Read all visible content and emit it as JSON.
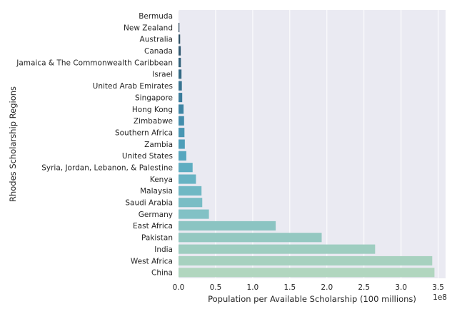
{
  "chart_data": {
    "type": "bar",
    "orientation": "horizontal",
    "xlabel": "Population per Available Scholarship (100 millions)",
    "ylabel": "Rhodes Scholarship Regions",
    "offset_label": "1e8",
    "xlim": [
      0,
      3.6
    ],
    "xticks": [
      "0.0",
      "0.5",
      "1.0",
      "1.5",
      "2.0",
      "2.5",
      "3.0",
      "3.5"
    ],
    "grid": true,
    "categories": [
      "Bermuda",
      "New Zealand",
      "Australia",
      "Canada",
      "Jamaica & The Commonwealth Caribbean",
      "Israel",
      "United Arab Emirates",
      "Singapore",
      "Hong Kong",
      "Zimbabwe",
      "Southern Africa",
      "Zambia",
      "United States",
      "Syria, Jordan, Lebanon, & Palestine",
      "Kenya",
      "Malaysia",
      "Saudi Arabia",
      "Germany",
      "East Africa",
      "Pakistan",
      "India",
      "West Africa",
      "China"
    ],
    "values": [
      0.0007,
      0.012,
      0.022,
      0.03,
      0.032,
      0.04,
      0.045,
      0.05,
      0.068,
      0.075,
      0.08,
      0.085,
      0.105,
      0.19,
      0.235,
      0.31,
      0.32,
      0.41,
      1.31,
      1.93,
      2.65,
      3.42,
      3.45
    ],
    "colors": [
      "#2a3d4d",
      "#2c4658",
      "#2e4f63",
      "#30586f",
      "#32617a",
      "#346a85",
      "#377390",
      "#3a7c9b",
      "#3e85a4",
      "#438dac",
      "#4896b3",
      "#4e9eb9",
      "#56a6be",
      "#5eadc1",
      "#67b3c3",
      "#70b8c4",
      "#79bdc5",
      "#82c1c5",
      "#8bc4c2",
      "#94c8c1",
      "#9ecdc0",
      "#a7d1bf",
      "#b1d6bf"
    ]
  }
}
